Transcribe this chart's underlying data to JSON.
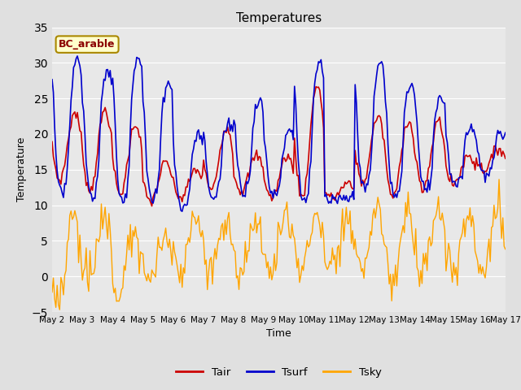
{
  "title": "Temperatures",
  "xlabel": "Time",
  "ylabel": "Temperature",
  "annotation": "BC_arable",
  "ylim": [
    -5,
    35
  ],
  "yticks": [
    -5,
    0,
    5,
    10,
    15,
    20,
    25,
    30,
    35
  ],
  "xtick_labels": [
    "May 2",
    "May 3",
    "May 4",
    "May 5",
    "May 6",
    "May 7",
    "May 8",
    "May 9",
    "May 10",
    "May 11",
    "May 12",
    "May 13",
    "May 14",
    "May 15",
    "May 16",
    "May 17"
  ],
  "color_tair": "#cc0000",
  "color_tsurf": "#0000cc",
  "color_tsky": "#ffa500",
  "legend_labels": [
    "Tair",
    "Tsurf",
    "Tsky"
  ],
  "bg_color": "#e8e8e8",
  "fig_bg_color": "#e0e0e0",
  "annotation_bg": "#ffffcc",
  "annotation_border": "#aa8800",
  "annotation_text_color": "#8b0000",
  "n_days": 15,
  "pts_per_day": 24
}
